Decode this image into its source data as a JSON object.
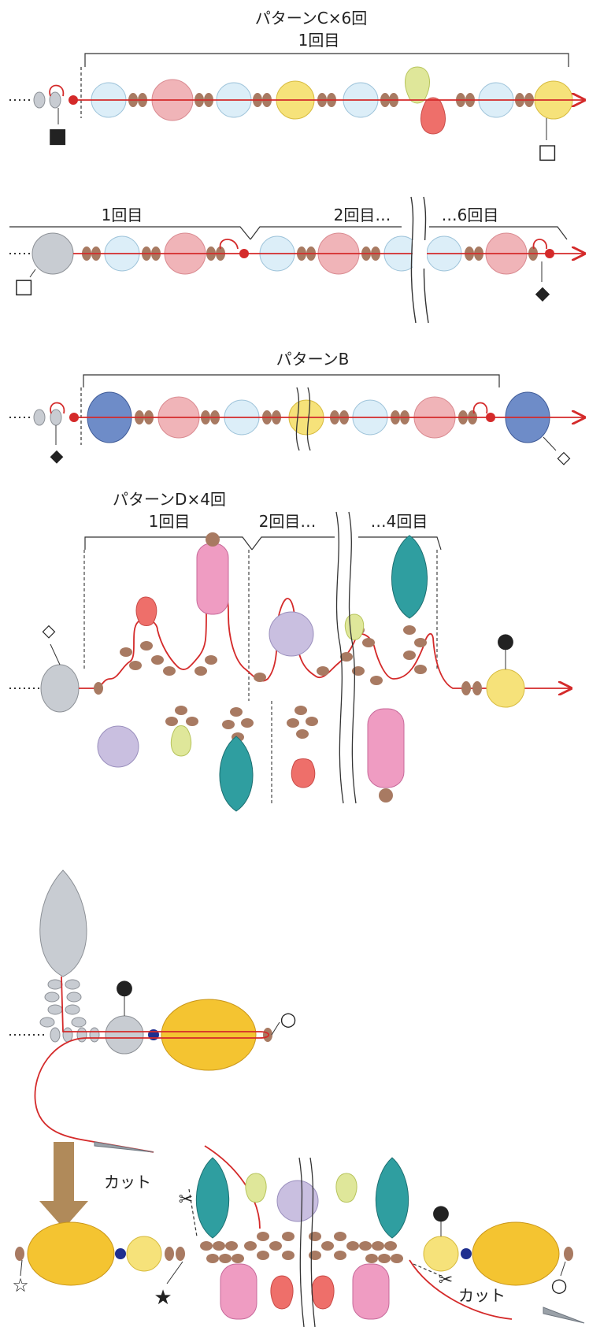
{
  "section1": {
    "label_pattern": "パターンC×6回",
    "label_round": "1回目",
    "marker_start": "■",
    "marker_end": "□"
  },
  "section2": {
    "label_round1": "1回目",
    "label_round2": "2回目…",
    "label_round6": "…6回目",
    "marker_start": "□",
    "marker_end": "◆"
  },
  "section3": {
    "label_pattern": "パターンB",
    "marker_start": "◆",
    "marker_end": "◇"
  },
  "section4": {
    "label_pattern": "パターンD×4回",
    "label_round1": "1回目",
    "label_round2": "2回目…",
    "label_round4": "…4回目",
    "marker_start": "◇",
    "marker_end": "●"
  },
  "section5": {
    "marker_top": "●",
    "marker_end": "○"
  },
  "section6": {
    "label_cut_left": "カット",
    "label_cut_right": "カット",
    "marker_left": "☆",
    "marker_star": "★",
    "marker_right_top": "●",
    "marker_right_bottom": "○"
  },
  "colors": {
    "thread": "#d42a2a",
    "seed_bead": "#a87a62",
    "gray_bead": "#c8ccd2",
    "clear_blue": "#dceef8",
    "pink": "#f0b4b8",
    "yellow": "#f6e27a",
    "lime": "#dfe79a",
    "red_drop": "#ee6f6a",
    "blue_round": "#6e8cc8",
    "teal_leaf": "#2f9ea0",
    "pink_bell": "#ef9cc2",
    "lavender": "#c9bfe0",
    "gold": "#f4c431",
    "navy_bead": "#1f2f8f",
    "arrow_brown": "#b08a5a"
  }
}
